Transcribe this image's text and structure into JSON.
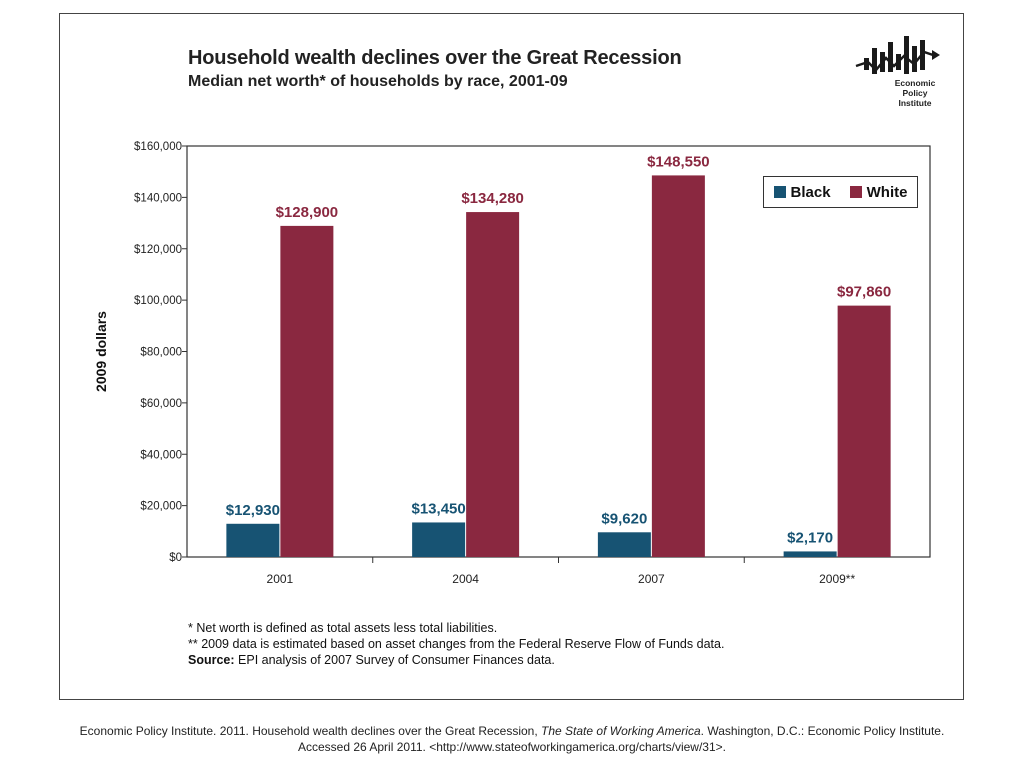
{
  "title": "Household wealth declines over the Great Recession",
  "subtitle": "Median net worth* of households by race, 2001-09",
  "logo": {
    "line1": "Economic",
    "line2": "Policy",
    "line3": "Institute"
  },
  "legend": {
    "black": "Black",
    "white": "White"
  },
  "colors": {
    "black": "#175373",
    "white": "#8a2840"
  },
  "chart_data": {
    "type": "bar",
    "categories": [
      "2001",
      "2004",
      "2007",
      "2009**"
    ],
    "series": [
      {
        "name": "Black",
        "values": [
          12930,
          13450,
          9620,
          2170
        ],
        "labels": [
          "$12,930",
          "$13,450",
          "$9,620",
          "$2,170"
        ]
      },
      {
        "name": "White",
        "values": [
          128900,
          134280,
          148550,
          97860
        ],
        "labels": [
          "$128,900",
          "$134,280",
          "$148,550",
          "$97,860"
        ]
      }
    ],
    "ylabel": "2009 dollars",
    "ylim": [
      0,
      160000
    ],
    "yticks": [
      0,
      20000,
      40000,
      60000,
      80000,
      100000,
      120000,
      140000,
      160000
    ],
    "ytick_labels": [
      "$0",
      "$20,000",
      "$40,000",
      "$60,000",
      "$80,000",
      "$100,000",
      "$120,000",
      "$140,000",
      "$160,000"
    ],
    "legend_position": "top-right",
    "grid": false
  },
  "notes": {
    "note1": "*  Net worth is defined as total assets less total liabilities.",
    "note2": "** 2009 data is estimated based on asset changes from the Federal Reserve Flow of Funds data.",
    "source_label": "Source:",
    "source_text": " EPI analysis of 2007 Survey of Consumer Finances data."
  },
  "citation": {
    "part1": "Economic Policy Institute. 2011. Household wealth declines over the Great Recession, ",
    "italic": "The State of Working America",
    "part2": ". Washington, D.C.: Economic Policy Institute.",
    "line2": "Accessed 26 April 2011.  <http://www.stateofworkingamerica.org/charts/view/31>."
  }
}
